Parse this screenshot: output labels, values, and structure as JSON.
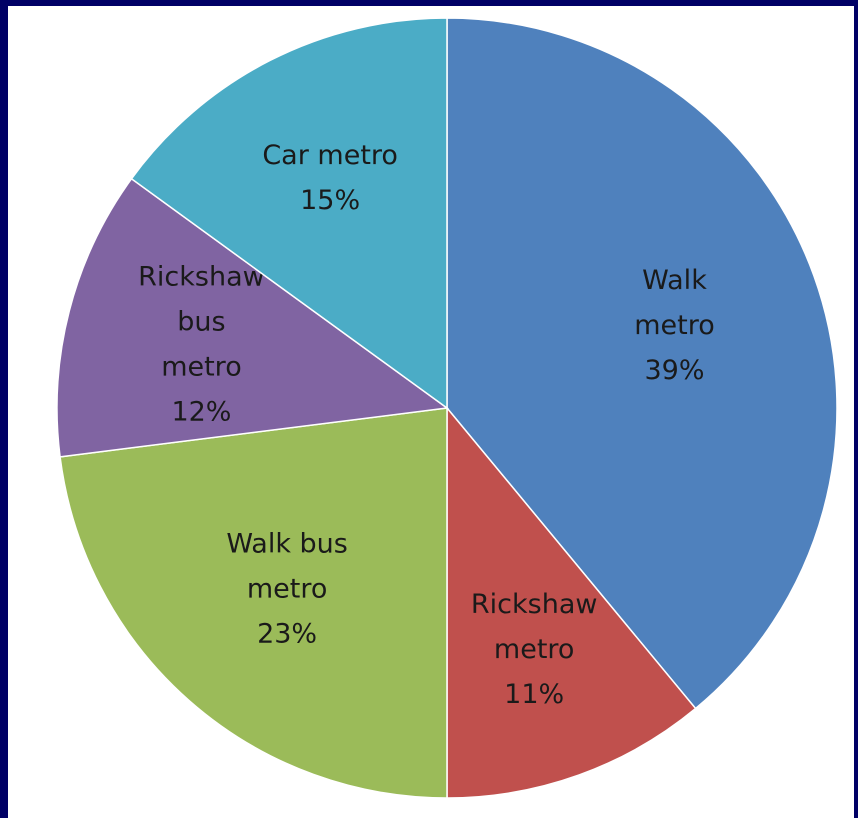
{
  "chart_data": {
    "type": "pie",
    "categories": [
      "Walk metro",
      "Rickshaw metro",
      "Walk bus metro",
      "Rickshaw bus metro",
      "Car metro"
    ],
    "values": [
      39,
      11,
      23,
      12,
      15
    ],
    "labels": [
      {
        "name_lines": [
          "Walk",
          "metro"
        ],
        "pct": "39%"
      },
      {
        "name_lines": [
          "Rickshaw",
          "metro"
        ],
        "pct": "11%"
      },
      {
        "name_lines": [
          "Walk bus",
          "metro"
        ],
        "pct": "23%"
      },
      {
        "name_lines": [
          "Rickshaw",
          "bus",
          "metro"
        ],
        "pct": "12%"
      },
      {
        "name_lines": [
          "Car metro"
        ],
        "pct": "15%"
      }
    ],
    "colors": [
      "#4f81bd",
      "#c0504d",
      "#9bbb59",
      "#8064a2",
      "#4bacc6"
    ],
    "title": "",
    "legend": "none"
  }
}
